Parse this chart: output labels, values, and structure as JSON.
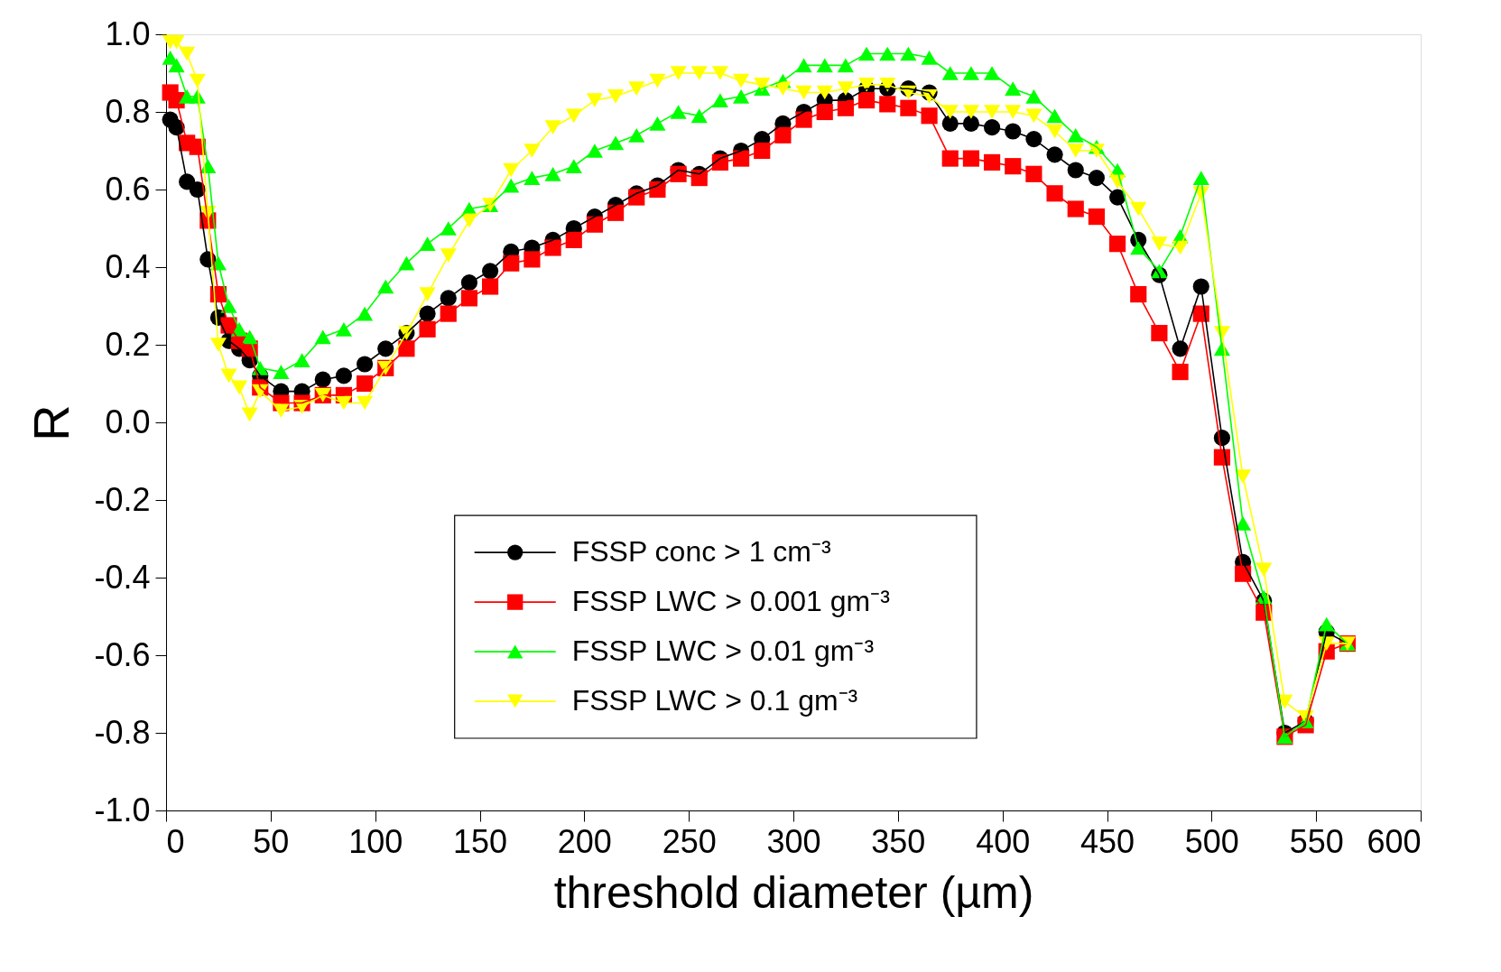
{
  "chart_data": {
    "type": "line",
    "xlabel": "threshold diameter (µm)",
    "ylabel": "R",
    "x": [
      2,
      5,
      10,
      15,
      20,
      25,
      30,
      35,
      40,
      45,
      55,
      65,
      75,
      85,
      95,
      105,
      115,
      125,
      135,
      145,
      155,
      165,
      175,
      185,
      195,
      205,
      215,
      225,
      235,
      245,
      255,
      265,
      275,
      285,
      295,
      305,
      315,
      325,
      335,
      345,
      355,
      365,
      375,
      385,
      395,
      405,
      415,
      425,
      435,
      445,
      455,
      465,
      475,
      485,
      495,
      505,
      515,
      525,
      535,
      545,
      555,
      565
    ],
    "series": [
      {
        "name": "FSSP conc > 1 cm⁻³",
        "color": "#000000",
        "marker": "circle",
        "values": [
          0.78,
          0.76,
          0.62,
          0.6,
          0.42,
          0.27,
          0.21,
          0.19,
          0.16,
          0.12,
          0.08,
          0.08,
          0.11,
          0.12,
          0.15,
          0.19,
          0.23,
          0.28,
          0.32,
          0.36,
          0.39,
          0.44,
          0.45,
          0.47,
          0.5,
          0.53,
          0.56,
          0.59,
          0.61,
          0.65,
          0.64,
          0.68,
          0.7,
          0.73,
          0.77,
          0.8,
          0.83,
          0.83,
          0.86,
          0.86,
          0.86,
          0.85,
          0.77,
          0.77,
          0.76,
          0.75,
          0.73,
          0.69,
          0.65,
          0.63,
          0.58,
          0.47,
          0.38,
          0.19,
          0.35,
          -0.04,
          -0.36,
          -0.46,
          -0.8,
          -0.77,
          -0.54,
          -0.57
        ]
      },
      {
        "name": "FSSP LWC > 0.001 gm⁻³",
        "color": "#ff0000",
        "marker": "square",
        "values": [
          0.85,
          0.83,
          0.72,
          0.71,
          0.52,
          0.33,
          0.25,
          0.21,
          0.19,
          0.09,
          0.05,
          0.05,
          0.07,
          0.07,
          0.1,
          0.14,
          0.19,
          0.24,
          0.28,
          0.32,
          0.35,
          0.41,
          0.42,
          0.45,
          0.47,
          0.51,
          0.54,
          0.58,
          0.6,
          0.64,
          0.63,
          0.67,
          0.68,
          0.7,
          0.74,
          0.78,
          0.8,
          0.81,
          0.83,
          0.82,
          0.81,
          0.79,
          0.68,
          0.68,
          0.67,
          0.66,
          0.64,
          0.59,
          0.55,
          0.53,
          0.46,
          0.33,
          0.23,
          0.13,
          0.28,
          -0.09,
          -0.39,
          -0.49,
          -0.81,
          -0.78,
          -0.59,
          -0.57
        ]
      },
      {
        "name": "FSSP LWC > 0.01 gm⁻³",
        "color": "#00ff00",
        "marker": "triangle",
        "values": [
          0.94,
          0.92,
          0.84,
          0.84,
          0.66,
          0.41,
          0.3,
          0.24,
          0.22,
          0.14,
          0.13,
          0.16,
          0.22,
          0.24,
          0.28,
          0.35,
          0.41,
          0.46,
          0.5,
          0.55,
          0.56,
          0.61,
          0.63,
          0.64,
          0.66,
          0.7,
          0.72,
          0.74,
          0.77,
          0.8,
          0.79,
          0.83,
          0.84,
          0.86,
          0.88,
          0.92,
          0.92,
          0.92,
          0.95,
          0.95,
          0.95,
          0.94,
          0.9,
          0.9,
          0.9,
          0.86,
          0.84,
          0.79,
          0.74,
          0.71,
          0.65,
          0.45,
          0.39,
          0.48,
          0.63,
          0.19,
          -0.26,
          -0.45,
          -0.81,
          -0.77,
          -0.52,
          -0.57
        ]
      },
      {
        "name": "FSSP LWC > 0.1 gm⁻³",
        "color": "#ffff00",
        "marker": "triangle-down",
        "values": [
          0.98,
          0.98,
          0.95,
          0.88,
          0.54,
          0.2,
          0.12,
          0.09,
          0.02,
          0.08,
          0.03,
          0.04,
          0.07,
          0.05,
          0.05,
          0.14,
          0.23,
          0.33,
          0.43,
          0.52,
          0.56,
          0.65,
          0.7,
          0.76,
          0.79,
          0.83,
          0.84,
          0.86,
          0.88,
          0.9,
          0.9,
          0.9,
          0.88,
          0.87,
          0.86,
          0.85,
          0.85,
          0.86,
          0.87,
          0.87,
          0.85,
          0.84,
          0.8,
          0.8,
          0.8,
          0.8,
          0.79,
          0.75,
          0.7,
          0.7,
          0.62,
          0.55,
          0.46,
          0.45,
          0.59,
          0.23,
          -0.14,
          -0.38,
          -0.72,
          -0.76,
          -0.57,
          -0.57
        ]
      }
    ],
    "xlim": [
      0,
      600
    ],
    "xticks": [
      0,
      50,
      100,
      150,
      200,
      250,
      300,
      350,
      400,
      450,
      500,
      550,
      600
    ],
    "ylim": [
      -1.0,
      1.0
    ],
    "yticks": [
      {
        "value": -1.0,
        "label": "-1.0"
      },
      {
        "value": -0.8,
        "label": "-0.8"
      },
      {
        "value": -0.6,
        "label": "-0.6"
      },
      {
        "value": -0.4,
        "label": "-0.4"
      },
      {
        "value": -0.2,
        "label": "-0.2"
      },
      {
        "value": 0,
        "label": "0.0"
      },
      {
        "value": 0.2,
        "label": "0.2"
      },
      {
        "value": 0.4,
        "label": "0.4"
      },
      {
        "value": 0.6,
        "label": "0.6"
      },
      {
        "value": 0.8,
        "label": "0.8"
      },
      {
        "value": 1.0,
        "label": "1.0"
      }
    ],
    "grid": false,
    "legend": "bottom",
    "line_style": "solid"
  }
}
